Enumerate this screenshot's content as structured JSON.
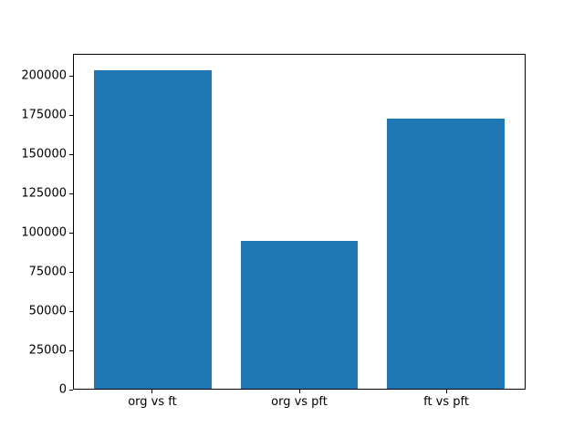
{
  "chart_data": {
    "type": "bar",
    "categories": [
      "org vs ft",
      "org vs pft",
      "ft vs pft"
    ],
    "values": [
      204000,
      95000,
      173000
    ],
    "title": "",
    "xlabel": "",
    "ylabel": "",
    "ylim": [
      0,
      214200
    ],
    "xlim": [
      -0.54,
      2.54
    ],
    "bar_width": 0.8,
    "yticks": [
      0,
      25000,
      50000,
      75000,
      100000,
      125000,
      150000,
      175000,
      200000
    ],
    "bar_color": "#1f77b4",
    "axis_color": "#000000",
    "background_color": "#ffffff",
    "grid": false,
    "legend": "none"
  }
}
